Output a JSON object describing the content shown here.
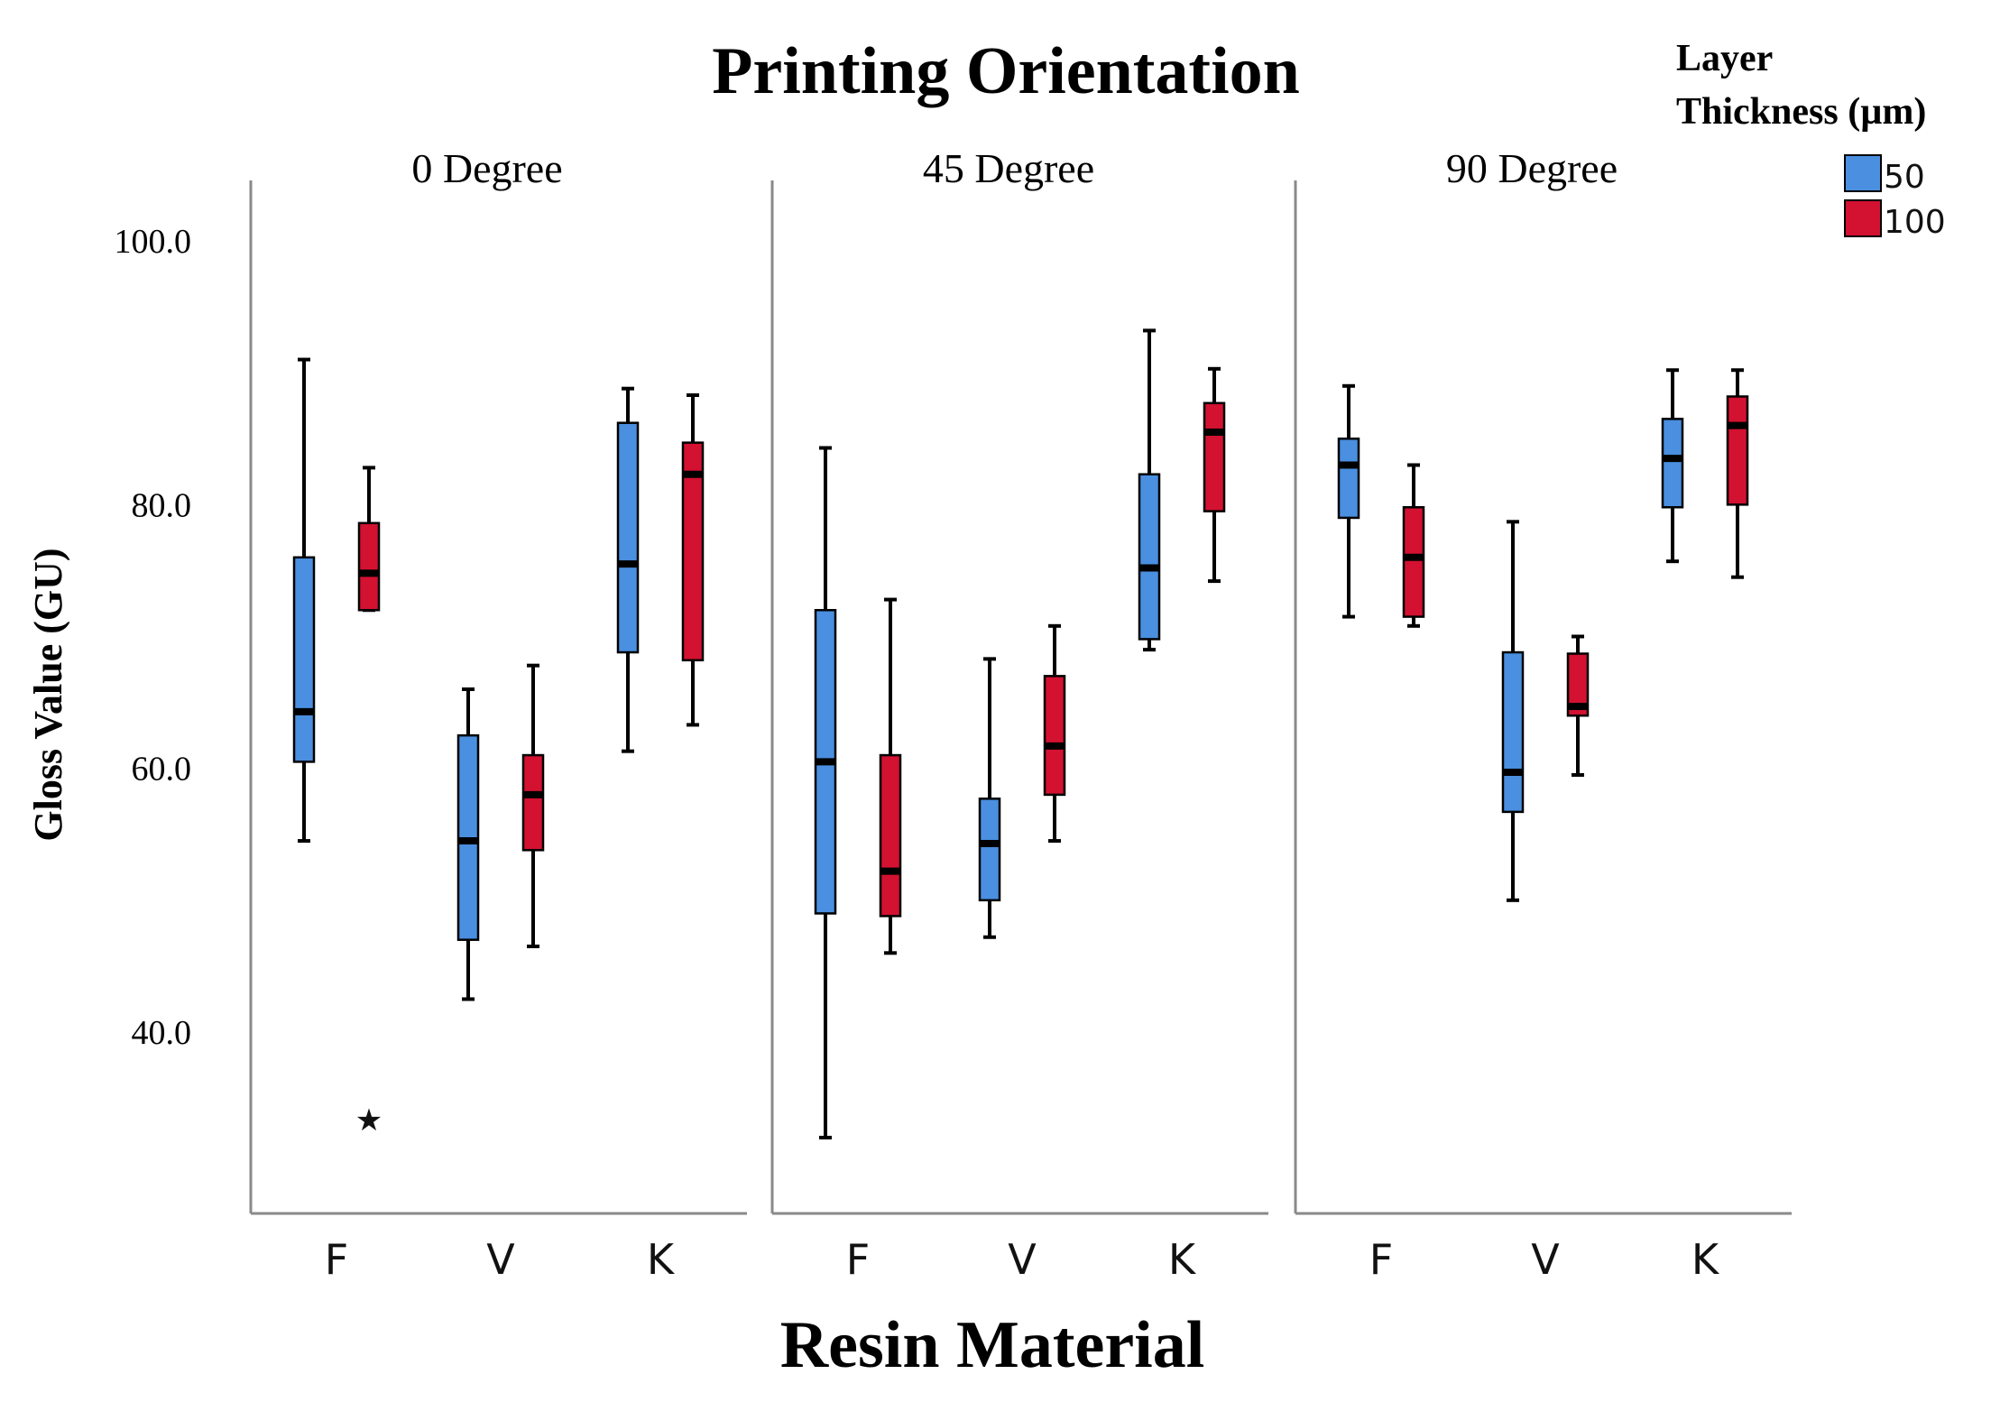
{
  "chart_data": {
    "type": "boxplot",
    "title": "Printing Orientation",
    "xlabel": "Resin Material",
    "ylabel": "Gloss Value (GU)",
    "ylim": [
      27,
      106
    ],
    "yticks": [
      "40.0",
      "60.0",
      "80.0",
      "100.0"
    ],
    "categories": [
      "F",
      "V",
      "K"
    ],
    "legend": {
      "title_line1": "Layer",
      "title_line2": "Thickness (µm)",
      "position": "top-right",
      "entries": [
        {
          "name": "50",
          "color": "#4a8fe0"
        },
        {
          "name": "100",
          "color": "#d31130"
        }
      ]
    },
    "panels": [
      {
        "label": "0  Degree",
        "groups": [
          {
            "category": "F",
            "series": "50",
            "min": 54.5,
            "q1": 60.5,
            "median": 64.3,
            "q3": 76.0,
            "max": 91.0
          },
          {
            "category": "F",
            "series": "100",
            "min": 72.0,
            "q1": 72.0,
            "median": 74.8,
            "q3": 78.6,
            "max": 82.8,
            "outliers": [
              33.5
            ]
          },
          {
            "category": "V",
            "series": "50",
            "min": 42.5,
            "q1": 47.0,
            "median": 54.5,
            "q3": 62.5,
            "max": 66.0
          },
          {
            "category": "V",
            "series": "100",
            "min": 46.5,
            "q1": 53.8,
            "median": 58.0,
            "q3": 61.0,
            "max": 67.8
          },
          {
            "category": "K",
            "series": "50",
            "min": 61.3,
            "q1": 68.8,
            "median": 75.5,
            "q3": 86.2,
            "max": 88.8
          },
          {
            "category": "K",
            "series": "100",
            "min": 63.3,
            "q1": 68.2,
            "median": 82.3,
            "q3": 84.7,
            "max": 88.3
          }
        ]
      },
      {
        "label": "45 Degree",
        "groups": [
          {
            "category": "F",
            "series": "50",
            "min": 32.0,
            "q1": 49.0,
            "median": 60.5,
            "q3": 72.0,
            "max": 84.3
          },
          {
            "category": "F",
            "series": "100",
            "min": 46.0,
            "q1": 48.8,
            "median": 52.2,
            "q3": 61.0,
            "max": 72.8
          },
          {
            "category": "V",
            "series": "50",
            "min": 47.2,
            "q1": 50.0,
            "median": 54.3,
            "q3": 57.7,
            "max": 68.3
          },
          {
            "category": "V",
            "series": "100",
            "min": 54.5,
            "q1": 58.0,
            "median": 61.7,
            "q3": 67.0,
            "max": 70.8
          },
          {
            "category": "K",
            "series": "50",
            "min": 69.0,
            "q1": 69.8,
            "median": 75.2,
            "q3": 82.3,
            "max": 93.2
          },
          {
            "category": "K",
            "series": "100",
            "min": 74.2,
            "q1": 79.5,
            "median": 85.5,
            "q3": 87.7,
            "max": 90.3
          }
        ]
      },
      {
        "label": "90  Degree",
        "groups": [
          {
            "category": "F",
            "series": "50",
            "min": 71.5,
            "q1": 79.0,
            "median": 83.0,
            "q3": 85.0,
            "max": 89.0
          },
          {
            "category": "F",
            "series": "100",
            "min": 70.8,
            "q1": 71.5,
            "median": 76.0,
            "q3": 79.8,
            "max": 83.0
          },
          {
            "category": "V",
            "series": "50",
            "min": 50.0,
            "q1": 56.7,
            "median": 59.7,
            "q3": 68.8,
            "max": 78.7
          },
          {
            "category": "V",
            "series": "100",
            "min": 59.5,
            "q1": 64.0,
            "median": 64.7,
            "q3": 68.7,
            "max": 70.0
          },
          {
            "category": "K",
            "series": "50",
            "min": 75.7,
            "q1": 79.8,
            "median": 83.5,
            "q3": 86.5,
            "max": 90.2
          },
          {
            "category": "K",
            "series": "100",
            "min": 74.5,
            "q1": 80.0,
            "median": 86.0,
            "q3": 88.2,
            "max": 90.2
          }
        ]
      }
    ]
  }
}
